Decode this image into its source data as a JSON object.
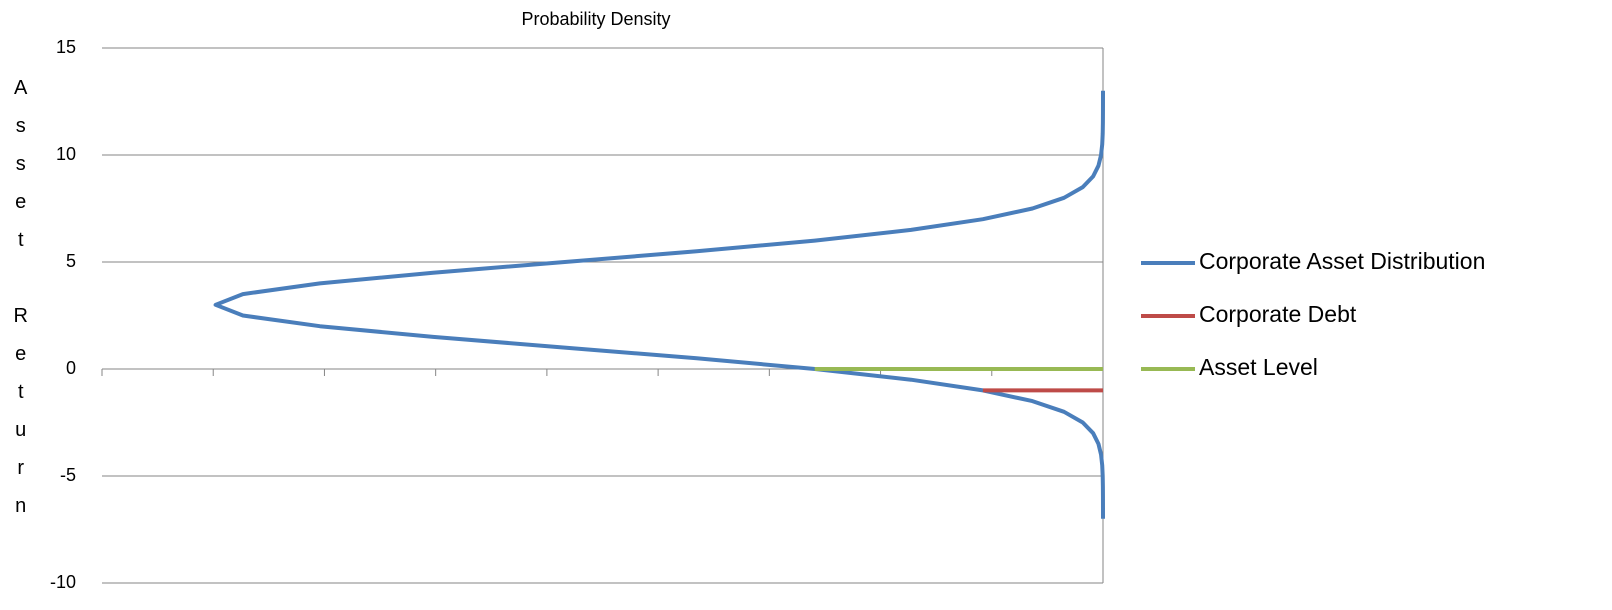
{
  "chart_data": {
    "type": "scatter",
    "xlabel": "Probability Density",
    "ylabel": "Asset Return",
    "xlim": [
      0,
      0.225
    ],
    "xticks": [
      0,
      0.025,
      0.05,
      0.075,
      0.1,
      0.125,
      0.15,
      0.175,
      0.2,
      0.225
    ],
    "x_reversed": true,
    "ylim": [
      -10,
      15
    ],
    "yticks": [
      -10,
      -5,
      0,
      5,
      10,
      15
    ],
    "grid": true,
    "legend": "right",
    "series": [
      {
        "name": "Corporate Asset Distribution",
        "color": "#4a7ebb",
        "x": [
          7e-07,
          2.5e-06,
          8e-06,
          2.4e-05,
          6.7e-05,
          0.000176,
          0.000436,
          0.00102,
          0.00222,
          0.00455,
          0.00876,
          0.01587,
          0.027,
          0.04315,
          0.06476,
          0.09132,
          0.12099,
          0.15057,
          0.17603,
          0.19333,
          0.19947,
          0.19333,
          0.17603,
          0.15057,
          0.12099,
          0.09132,
          0.06476,
          0.04315,
          0.027,
          0.01587,
          0.00876,
          0.00455,
          0.00222,
          0.00102,
          0.000436,
          0.000176,
          6.7e-05,
          2.4e-05,
          8e-06,
          2.5e-06,
          7e-07
        ],
        "values": [
          -7,
          -6.5,
          -6,
          -5.5,
          -5,
          -4.5,
          -4,
          -3.5,
          -3,
          -2.5,
          -2,
          -1.5,
          -1,
          -0.5,
          0,
          0.5,
          1,
          1.5,
          2,
          2.5,
          3,
          3.5,
          4,
          4.5,
          5,
          5.5,
          6,
          6.5,
          7,
          7.5,
          8,
          8.5,
          9,
          9.5,
          10,
          10.5,
          11,
          11.5,
          12,
          12.5,
          13
        ]
      },
      {
        "name": "Corporate Debt",
        "color": "#be4b48",
        "x": [
          0.027,
          0
        ],
        "values": [
          -1,
          -1
        ]
      },
      {
        "name": "Asset Level",
        "color": "#98b954",
        "x": [
          0.0648,
          0
        ],
        "values": [
          0,
          0
        ]
      }
    ]
  }
}
